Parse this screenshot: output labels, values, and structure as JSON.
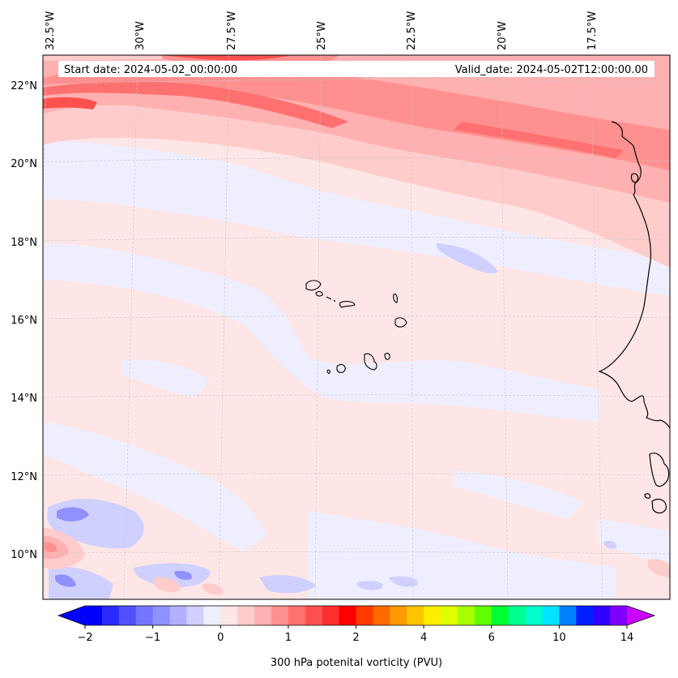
{
  "header": {
    "start_date": "Start date: 2024-05-02_00:00:00",
    "valid_date": "Valid_date: 2024-05-02T12:00:00.00"
  },
  "axes": {
    "lon_labels": [
      "32.5°W",
      "30°W",
      "27.5°W",
      "25°W",
      "22.5°W",
      "20°W",
      "17.5°W"
    ],
    "lat_labels": [
      "22°N",
      "20°N",
      "18°N",
      "16°N",
      "14°N",
      "12°N",
      "10°N"
    ]
  },
  "colorbar": {
    "label": "300 hPa potenital vorticity (PVU)",
    "ticks": [
      "−2",
      "−1",
      "0",
      "1",
      "2",
      "4",
      "6",
      "10",
      "14"
    ],
    "colors": [
      "#0000ff",
      "#2a2aff",
      "#5050ff",
      "#7474ff",
      "#9090ff",
      "#b0b0ff",
      "#d0d0ff",
      "#eeeeff",
      "#ffe6e6",
      "#ffcccc",
      "#ffb0b0",
      "#ff9090",
      "#ff7070",
      "#ff5050",
      "#ff2e2e",
      "#ff0000",
      "#ff3a00",
      "#ff6a00",
      "#ff9a00",
      "#ffc400",
      "#ffee00",
      "#e0ff00",
      "#a8ff00",
      "#60ff00",
      "#00ff30",
      "#00ff90",
      "#00ffcc",
      "#00e5ff",
      "#0080ff",
      "#0020ff",
      "#3000ff",
      "#8000ff"
    ],
    "over_color": "#cc00ff",
    "under_color": "#0000ff"
  },
  "field_colors": {
    "bg_neutral": "#ffe6e6",
    "light_blue": "#eeeeff",
    "mid_blue": "#d0d0ff",
    "blue": "#b0b0ff",
    "dark_blue": "#9090ff",
    "pink1": "#ffcccc",
    "pink2": "#ffb0b0",
    "pink3": "#ff9090",
    "red1": "#ff7070",
    "red2": "#ff5050",
    "red3": "#ff2e2e"
  }
}
